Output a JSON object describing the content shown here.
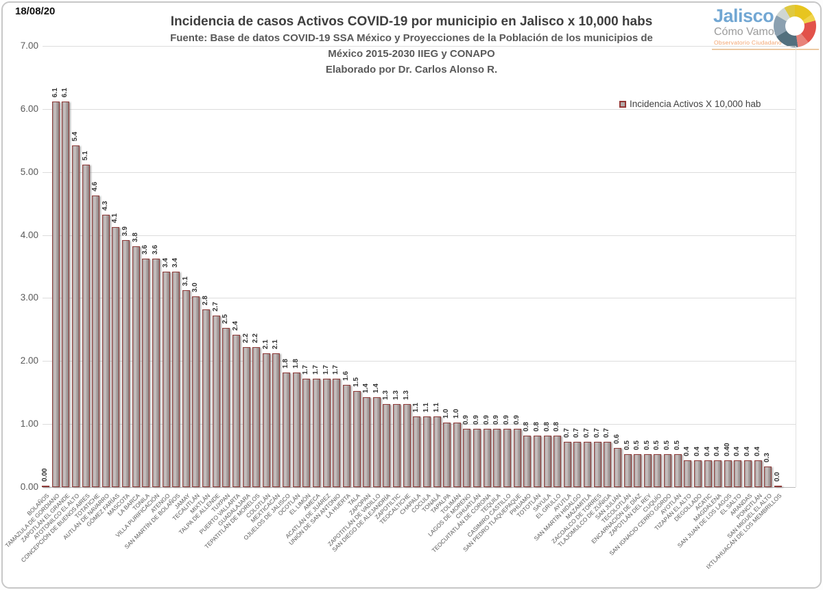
{
  "meta": {
    "date": "18/08/20"
  },
  "header": {
    "title": "Incidencia de casos Activos COVID-19 por municipio en Jalisco x 10,000 habs",
    "source_line1": "Fuente: Base de datos COVID-19 SSA México y Proyecciones de la Población de los municipios de",
    "source_line2": "México 2015-2030 IIEG y CONAPO",
    "credit": "Elaborado por Dr. Carlos Alonso R."
  },
  "logo": {
    "name": "Jalisco",
    "subtitle": "Cómo Vamos",
    "tagline": "Observatorio Ciudadano"
  },
  "legend": {
    "label": "Incidencia Activos X 10,000 hab"
  },
  "colors": {
    "bar_fill": "#b3a9a8",
    "bar_border": "#943634",
    "grid": "#d9d9d9",
    "logo_blue": "#72a7d3",
    "logo_orange": "#f2a36e"
  },
  "chart_data": {
    "type": "bar",
    "title": "Incidencia de casos Activos COVID-19 por municipio en Jalisco x 10,000 habs",
    "xlabel": "",
    "ylabel": "",
    "ylim": [
      0,
      7
    ],
    "yticks": [
      "7.00",
      "6.00",
      "5.00",
      "4.00",
      "3.00",
      "2.00",
      "1.00",
      "0.00"
    ],
    "grid": true,
    "legend": [
      "Incidencia Activos X 10,000 hab"
    ],
    "legend_position": "top-right",
    "categories": [
      "BOLAÑOS",
      "TAMAZULA DE GORDIANO",
      "ZAPOTLÁN EL GRANDE",
      "ATOTONILCO EL ALTO",
      "CONCEPCIÓN DE BUENOS AIRES",
      "TOTATICHE",
      "AUTLÁN DE NAVARRO",
      "GÓMEZ FARÍAS",
      "MASCOTA",
      "LA BARCA",
      "TONILA",
      "VILLA PURIFICACIÓN",
      "ATENGO",
      "SAN MARTÍN DE BOLAÑOS",
      "JAMAY",
      "TECALITLÁN",
      "MIXTLÁN",
      "TALPA DE ALLENDE",
      "TUXPAN",
      "PUERTO VALLARTA",
      "GUADALAJARA",
      "TEPATITLÁN DE MORELOS",
      "COLOTLÁN",
      "MEXTICACÁN",
      "OJUELOS DE JALISCO",
      "OCOTLÁN",
      "EL LIMÓN",
      "AMECA",
      "ACATLÁN DE JUÁREZ",
      "UNIÓN DE SAN ANTONIO",
      "LA HUERTA",
      "TALA",
      "ZAPOPAN",
      "ZAPOTITLÁN DE VADILLO",
      "SAN DIEGO DE ALEJANDRÍA",
      "ZAPOTILTIC",
      "TEOCALTICHE",
      "CHAPALA",
      "COCULA",
      "TONALÁ",
      "TAPALPA",
      "TOLIMÁN",
      "LAGOS DE MORENO",
      "CIHUATLÁN",
      "TEOCUITATLÁN DE CORONA",
      "TEQUILA",
      "CASIMIRO CASTILLO",
      "SAN PEDRO TLAQUEPAQUE",
      "PIHUAMO",
      "TOTOTLÁN",
      "SAYULA",
      "EL GRULLO",
      "AYUTLA",
      "SAN MARTÍN HIDALGO",
      "MAZAMITLA",
      "ZACOALCO DE TORRES",
      "TLAJOMULCO DE ZÚÑIGA",
      "SAN JULIÁN",
      "TECOLOTLÁN",
      "ENCARNACIÓN DE DÍAZ",
      "ZAPOTLÁN DEL REY",
      "CUQUÍO",
      "SAN IGNACIO CERRO GORDO",
      "AYOTLÁN",
      "TIZAPÁN EL ALTO",
      "DEGOLLADO",
      "ACATIC",
      "MAGDALENA",
      "SAN JUAN DE LOS LAGOS",
      "EL SALTO",
      "ARANDAS",
      "PONCITLÁN",
      "SAN MIGUEL EL ALTO",
      "IXTLAHUACÁN DE LOS MEMBRILLOS"
    ],
    "values": [
      0.0,
      6.1,
      6.1,
      5.4,
      5.1,
      4.6,
      4.3,
      4.1,
      3.9,
      3.8,
      3.6,
      3.6,
      3.4,
      3.4,
      3.1,
      3.0,
      2.8,
      2.7,
      2.5,
      2.4,
      2.2,
      2.2,
      2.1,
      2.1,
      1.8,
      1.8,
      1.7,
      1.7,
      1.7,
      1.7,
      1.6,
      1.5,
      1.4,
      1.4,
      1.3,
      1.3,
      1.3,
      1.1,
      1.1,
      1.1,
      1.0,
      1.0,
      0.9,
      0.9,
      0.9,
      0.9,
      0.9,
      0.9,
      0.8,
      0.8,
      0.8,
      0.8,
      0.7,
      0.7,
      0.7,
      0.7,
      0.7,
      0.6,
      0.5,
      0.5,
      0.5,
      0.5,
      0.5,
      0.5,
      0.4,
      0.4,
      0.4,
      0.4,
      0.4,
      0.4,
      0.4,
      0.4,
      0.3,
      0.0
    ],
    "value_labels": [
      "0.00",
      "6.1",
      "6.1",
      "5.4",
      "5.1",
      "4.6",
      "4.3",
      "4.1",
      "3.9",
      "3.8",
      "3.6",
      "3.6",
      "3.4",
      "3.4",
      "3.1",
      "3.0",
      "2.8",
      "2.7",
      "2.5",
      "2.4",
      "2.2",
      "2.2",
      "2.1",
      "2.1",
      "1.8",
      "1.8",
      "1.7",
      "1.7",
      "1.7",
      "1.7",
      "1.6",
      "1.5",
      "1.4",
      "1.4",
      "1.3",
      "1.3",
      "1.3",
      "1.1",
      "1.1",
      "1.1",
      "1.0",
      "1.0",
      "0.9",
      "0.9",
      "0.9",
      "0.9",
      "0.9",
      "0.9",
      "0.8",
      "0.8",
      "0.8",
      "0.8",
      "0.7",
      "0.7",
      "0.7",
      "0.7",
      "0.7",
      "0.6",
      "0.5",
      "0.5",
      "0.5",
      "0.5",
      "0.5",
      "0.5",
      "0.4",
      "0.4",
      "0.4",
      "0.4",
      "0.40",
      "0.4",
      "0.4",
      "0.4",
      "0.3",
      "0.0"
    ]
  }
}
